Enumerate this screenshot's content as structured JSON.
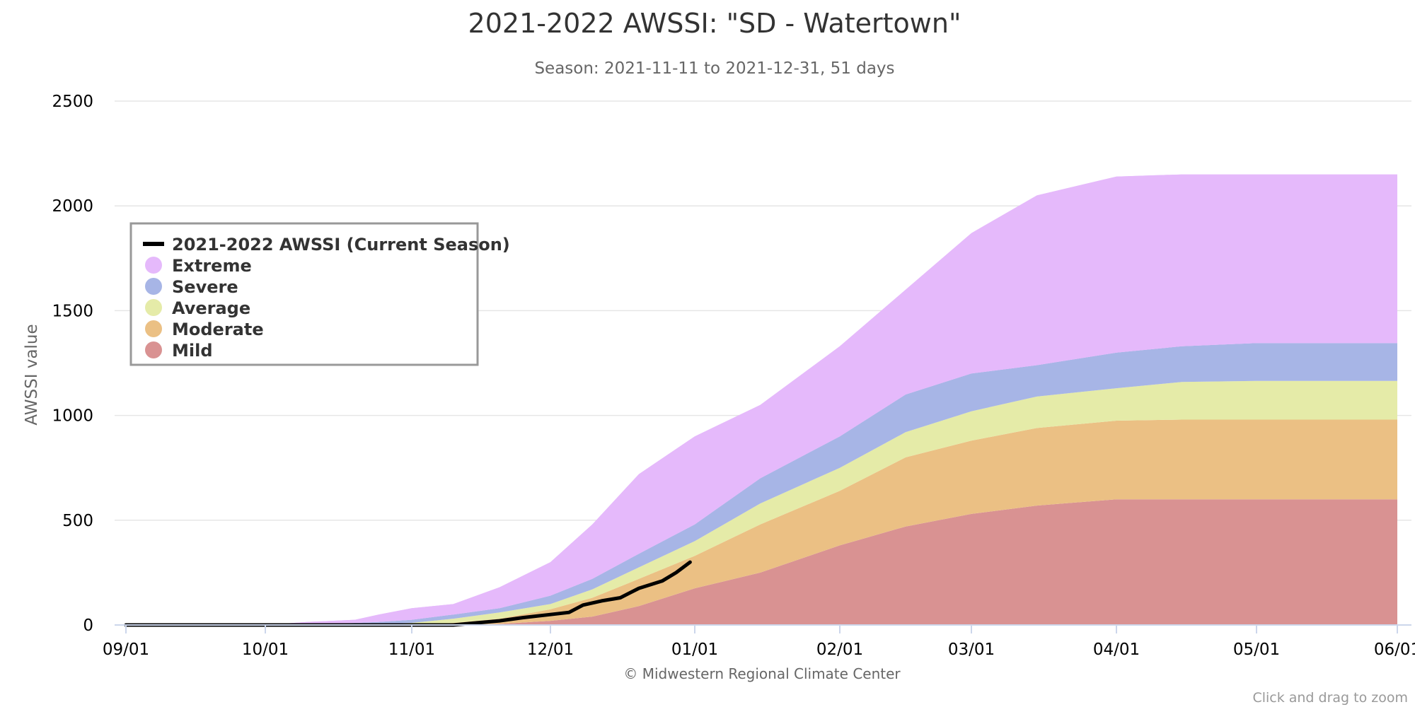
{
  "chart_data": {
    "type": "area",
    "title": "2021-2022 AWSSI: \"SD - Watertown\"",
    "subtitle": "Season: 2021-11-11 to 2021-12-31, 51 days",
    "ylabel": "AWSSI value",
    "xlabel": "",
    "ylim": [
      0,
      2500
    ],
    "yticks": [
      0,
      500,
      1000,
      1500,
      2000,
      2500
    ],
    "xlim": [
      "09/01",
      "06/01"
    ],
    "xticks": [
      "09/01",
      "10/01",
      "11/01",
      "12/01",
      "01/01",
      "02/01",
      "03/01",
      "04/01",
      "05/01",
      "06/01"
    ],
    "grid": true,
    "legend_position": "top-left",
    "x": [
      "09/01",
      "10/01",
      "10/10",
      "10/20",
      "10/25",
      "11/01",
      "11/10",
      "11/20",
      "12/01",
      "12/10",
      "12/20",
      "01/01",
      "01/15",
      "02/01",
      "02/15",
      "03/01",
      "03/15",
      "04/01",
      "04/15",
      "05/01",
      "06/01"
    ],
    "series": [
      {
        "name": "Mild",
        "color": "#d99292",
        "lower": [
          0,
          0,
          0,
          0,
          0,
          0,
          0,
          0,
          0,
          0,
          0,
          0,
          0,
          0,
          0,
          0,
          0,
          0,
          0,
          0,
          0
        ],
        "upper": [
          0,
          0,
          0,
          0,
          0,
          0,
          0,
          5,
          20,
          40,
          90,
          175,
          250,
          380,
          470,
          530,
          570,
          600,
          600,
          600,
          600
        ]
      },
      {
        "name": "Moderate",
        "color": "#ebc084",
        "lower": [
          0,
          0,
          0,
          0,
          0,
          0,
          0,
          5,
          20,
          40,
          90,
          175,
          250,
          380,
          470,
          530,
          570,
          600,
          600,
          600,
          600
        ],
        "upper": [
          0,
          0,
          0,
          0,
          0,
          0,
          10,
          30,
          75,
          130,
          220,
          330,
          480,
          640,
          800,
          880,
          940,
          975,
          980,
          980,
          980
        ]
      },
      {
        "name": "Average",
        "color": "#e5eba8",
        "lower": [
          0,
          0,
          0,
          0,
          0,
          0,
          10,
          30,
          75,
          130,
          220,
          330,
          480,
          640,
          800,
          880,
          940,
          975,
          980,
          980,
          980
        ],
        "upper": [
          0,
          0,
          0,
          0,
          5,
          10,
          30,
          60,
          100,
          170,
          275,
          400,
          580,
          750,
          920,
          1020,
          1090,
          1130,
          1160,
          1165,
          1165
        ]
      },
      {
        "name": "Severe",
        "color": "#a7b5e6",
        "lower": [
          0,
          0,
          0,
          0,
          5,
          10,
          30,
          60,
          100,
          170,
          275,
          400,
          580,
          750,
          920,
          1020,
          1090,
          1130,
          1160,
          1165,
          1165
        ],
        "upper": [
          0,
          0,
          5,
          10,
          15,
          25,
          50,
          80,
          140,
          220,
          340,
          480,
          700,
          900,
          1100,
          1200,
          1240,
          1300,
          1330,
          1345,
          1345
        ]
      },
      {
        "name": "Extreme",
        "color": "#e5b9fb",
        "lower": [
          0,
          0,
          5,
          10,
          15,
          25,
          50,
          80,
          140,
          220,
          340,
          480,
          700,
          900,
          1100,
          1200,
          1240,
          1300,
          1330,
          1345,
          1345
        ],
        "upper": [
          0,
          0,
          15,
          25,
          50,
          80,
          100,
          180,
          300,
          480,
          720,
          900,
          1050,
          1330,
          1600,
          1870,
          2050,
          2140,
          2150,
          2150,
          2150
        ]
      },
      {
        "name": "Extreme",
        "color": "#e5b9fb",
        "lower": [
          0,
          0,
          5,
          10,
          15,
          25,
          50,
          80,
          140,
          220,
          340,
          480,
          700,
          900,
          1100,
          1200,
          1240,
          1300,
          1330,
          1345,
          1345
        ],
        "upper": [
          0,
          0,
          15,
          25,
          50,
          80,
          100,
          180,
          300,
          480,
          720,
          900,
          1050,
          1330,
          1600,
          1870,
          2050,
          2140,
          2150,
          2150,
          2150
        ]
      }
    ],
    "current_season": {
      "name": "2021-2022 AWSSI (Current Season)",
      "color": "#000000",
      "x": [
        "09/01",
        "11/10",
        "11/15",
        "11/20",
        "11/25",
        "12/01",
        "12/05",
        "12/08",
        "12/12",
        "12/16",
        "12/20",
        "12/25",
        "12/28",
        "12/31"
      ],
      "values": [
        0,
        0,
        10,
        20,
        35,
        50,
        60,
        95,
        115,
        130,
        175,
        210,
        250,
        300
      ]
    },
    "legend": [
      "2021-2022 AWSSI (Current Season)",
      "Extreme",
      "Severe",
      "Average",
      "Moderate",
      "Mild"
    ],
    "credits": "© Midwestern Regional Climate Center",
    "zoom_hint": "Click and drag to zoom"
  }
}
